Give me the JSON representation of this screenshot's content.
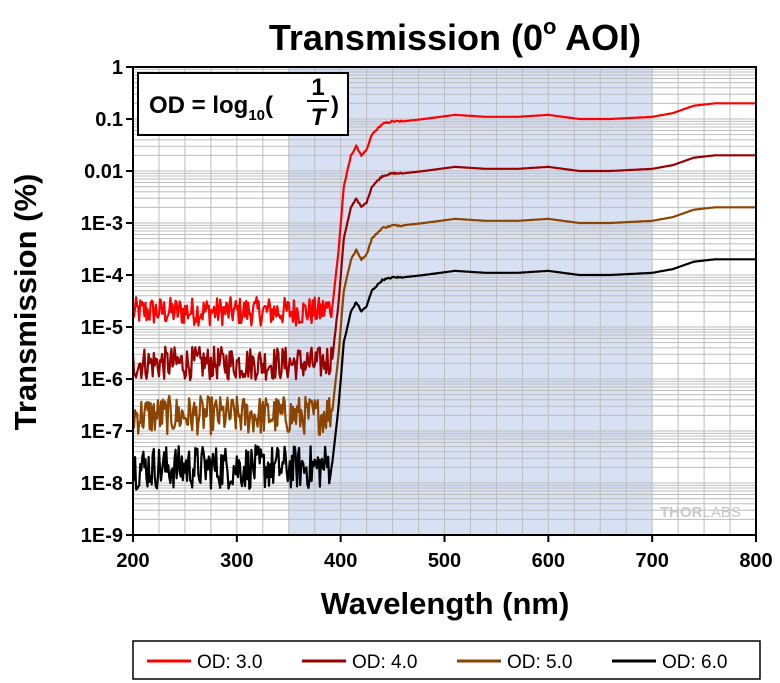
{
  "chart_data": {
    "type": "line",
    "title": "Transmission (0",
    "title_degree": "o",
    "title_suffix": " AOI)",
    "xlabel": "Wavelength (nm)",
    "ylabel": "Transmission (%)",
    "xlim": [
      200,
      800
    ],
    "ylim_log10": [
      -9,
      0
    ],
    "yscale": "log",
    "x_ticks": [
      "200",
      "300",
      "400",
      "500",
      "600",
      "700",
      "800"
    ],
    "y_ticks": [
      "1E-9",
      "1E-8",
      "1E-7",
      "1E-6",
      "1E-5",
      "1E-4",
      "1E-3",
      "0.01",
      "0.1",
      "1"
    ],
    "shaded_region": {
      "x_from": 350,
      "x_to": 700,
      "color": "#d8e0f4"
    },
    "annotation": {
      "lhs": "OD = log",
      "sub": "10",
      "num": "1",
      "den": "T"
    },
    "watermark": {
      "part1": "THOR",
      "part2": "LABS"
    },
    "series": [
      {
        "name": "OD: 3.0",
        "color": "#ff0000",
        "od": 3.0,
        "x": [
          200,
          380,
          392,
          398,
          403,
          410,
          415,
          420,
          425,
          430,
          440,
          450,
          460,
          480,
          510,
          540,
          570,
          600,
          630,
          660,
          700,
          720,
          740,
          760,
          780,
          800
        ],
        "y": [
          2e-05,
          2e-05,
          2.5e-05,
          0.0003,
          0.005,
          0.02,
          0.03,
          0.02,
          0.025,
          0.05,
          0.08,
          0.09,
          0.09,
          0.1,
          0.12,
          0.11,
          0.11,
          0.12,
          0.1,
          0.1,
          0.11,
          0.13,
          0.18,
          0.2,
          0.2,
          0.2
        ]
      },
      {
        "name": "OD: 4.0",
        "color": "#990000",
        "od": 4.0,
        "x": [
          200,
          380,
          392,
          398,
          403,
          410,
          415,
          420,
          425,
          430,
          440,
          450,
          460,
          480,
          510,
          540,
          570,
          600,
          630,
          660,
          700,
          720,
          740,
          760,
          780,
          800
        ],
        "y": [
          2e-06,
          2e-06,
          2.5e-06,
          3e-05,
          0.0005,
          0.002,
          0.003,
          0.002,
          0.0025,
          0.005,
          0.008,
          0.009,
          0.009,
          0.01,
          0.012,
          0.011,
          0.011,
          0.012,
          0.01,
          0.01,
          0.011,
          0.013,
          0.018,
          0.02,
          0.02,
          0.02
        ]
      },
      {
        "name": "OD: 5.0",
        "color": "#8b4500",
        "od": 5.0,
        "x": [
          200,
          380,
          392,
          398,
          403,
          410,
          415,
          420,
          425,
          430,
          440,
          450,
          460,
          480,
          510,
          540,
          570,
          600,
          630,
          660,
          700,
          720,
          740,
          760,
          780,
          800
        ],
        "y": [
          2e-07,
          2e-07,
          2.5e-07,
          3e-06,
          5e-05,
          0.0002,
          0.0003,
          0.0002,
          0.00025,
          0.0005,
          0.0008,
          0.0009,
          0.0009,
          0.001,
          0.0012,
          0.0011,
          0.0011,
          0.0012,
          0.001,
          0.001,
          0.0011,
          0.0013,
          0.0018,
          0.002,
          0.002,
          0.002
        ]
      },
      {
        "name": "OD: 6.0",
        "color": "#000000",
        "od": 6.0,
        "x": [
          200,
          380,
          392,
          398,
          403,
          410,
          415,
          420,
          425,
          430,
          440,
          450,
          460,
          480,
          510,
          540,
          570,
          600,
          630,
          660,
          700,
          720,
          740,
          760,
          780,
          800
        ],
        "y": [
          2e-08,
          2e-08,
          2.5e-08,
          3e-07,
          5e-06,
          2e-05,
          3e-05,
          2e-05,
          2.5e-05,
          5e-05,
          8e-05,
          9e-05,
          9e-05,
          0.0001,
          0.00012,
          0.00011,
          0.00011,
          0.00012,
          0.0001,
          0.0001,
          0.00011,
          0.00013,
          0.00018,
          0.0002,
          0.0002,
          0.0002
        ]
      }
    ]
  }
}
